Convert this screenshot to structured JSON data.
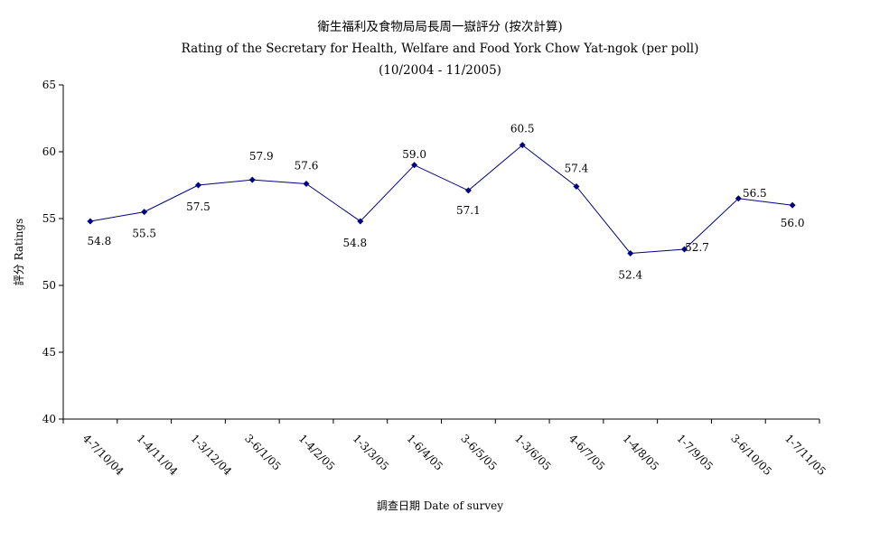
{
  "chart_data": {
    "type": "line",
    "title": "衛生福利及食物局局長周一嶽評分 (按次計算)",
    "subtitle": "Rating of the Secretary for Health, Welfare and Food York Chow Yat-ngok  (per poll)",
    "period": "(10/2004 - 11/2005)",
    "xlabel": "調查日期 Date of survey",
    "ylabel": "評分 Ratings",
    "ylim": [
      40,
      65
    ],
    "yticks": [
      "40",
      "45",
      "50",
      "55",
      "60",
      "65"
    ],
    "grid": false,
    "categories": [
      "4-7/10/04",
      "1-4/11/04",
      "1-3/12/04",
      "3-6/1/05",
      "1-4/2/05",
      "1-3/3/05",
      "1-6/4/05",
      "3-6/5/05",
      "1-3/6/05",
      "4-6/7/05",
      "1-4/8/05",
      "1-7/9/05",
      "3-6/10/05",
      "1-7/11/05"
    ],
    "values": [
      54.8,
      55.5,
      57.5,
      57.9,
      57.6,
      54.8,
      59.0,
      57.1,
      60.5,
      57.4,
      52.4,
      52.7,
      56.5,
      56.0
    ],
    "labels": [
      "54.8",
      "55.5",
      "57.5",
      "57.9",
      "57.6",
      "54.8",
      "59.0",
      "57.1",
      "60.5",
      "57.4",
      "52.4",
      "52.7",
      "56.5",
      "56.0"
    ],
    "line_color": "#000080"
  }
}
